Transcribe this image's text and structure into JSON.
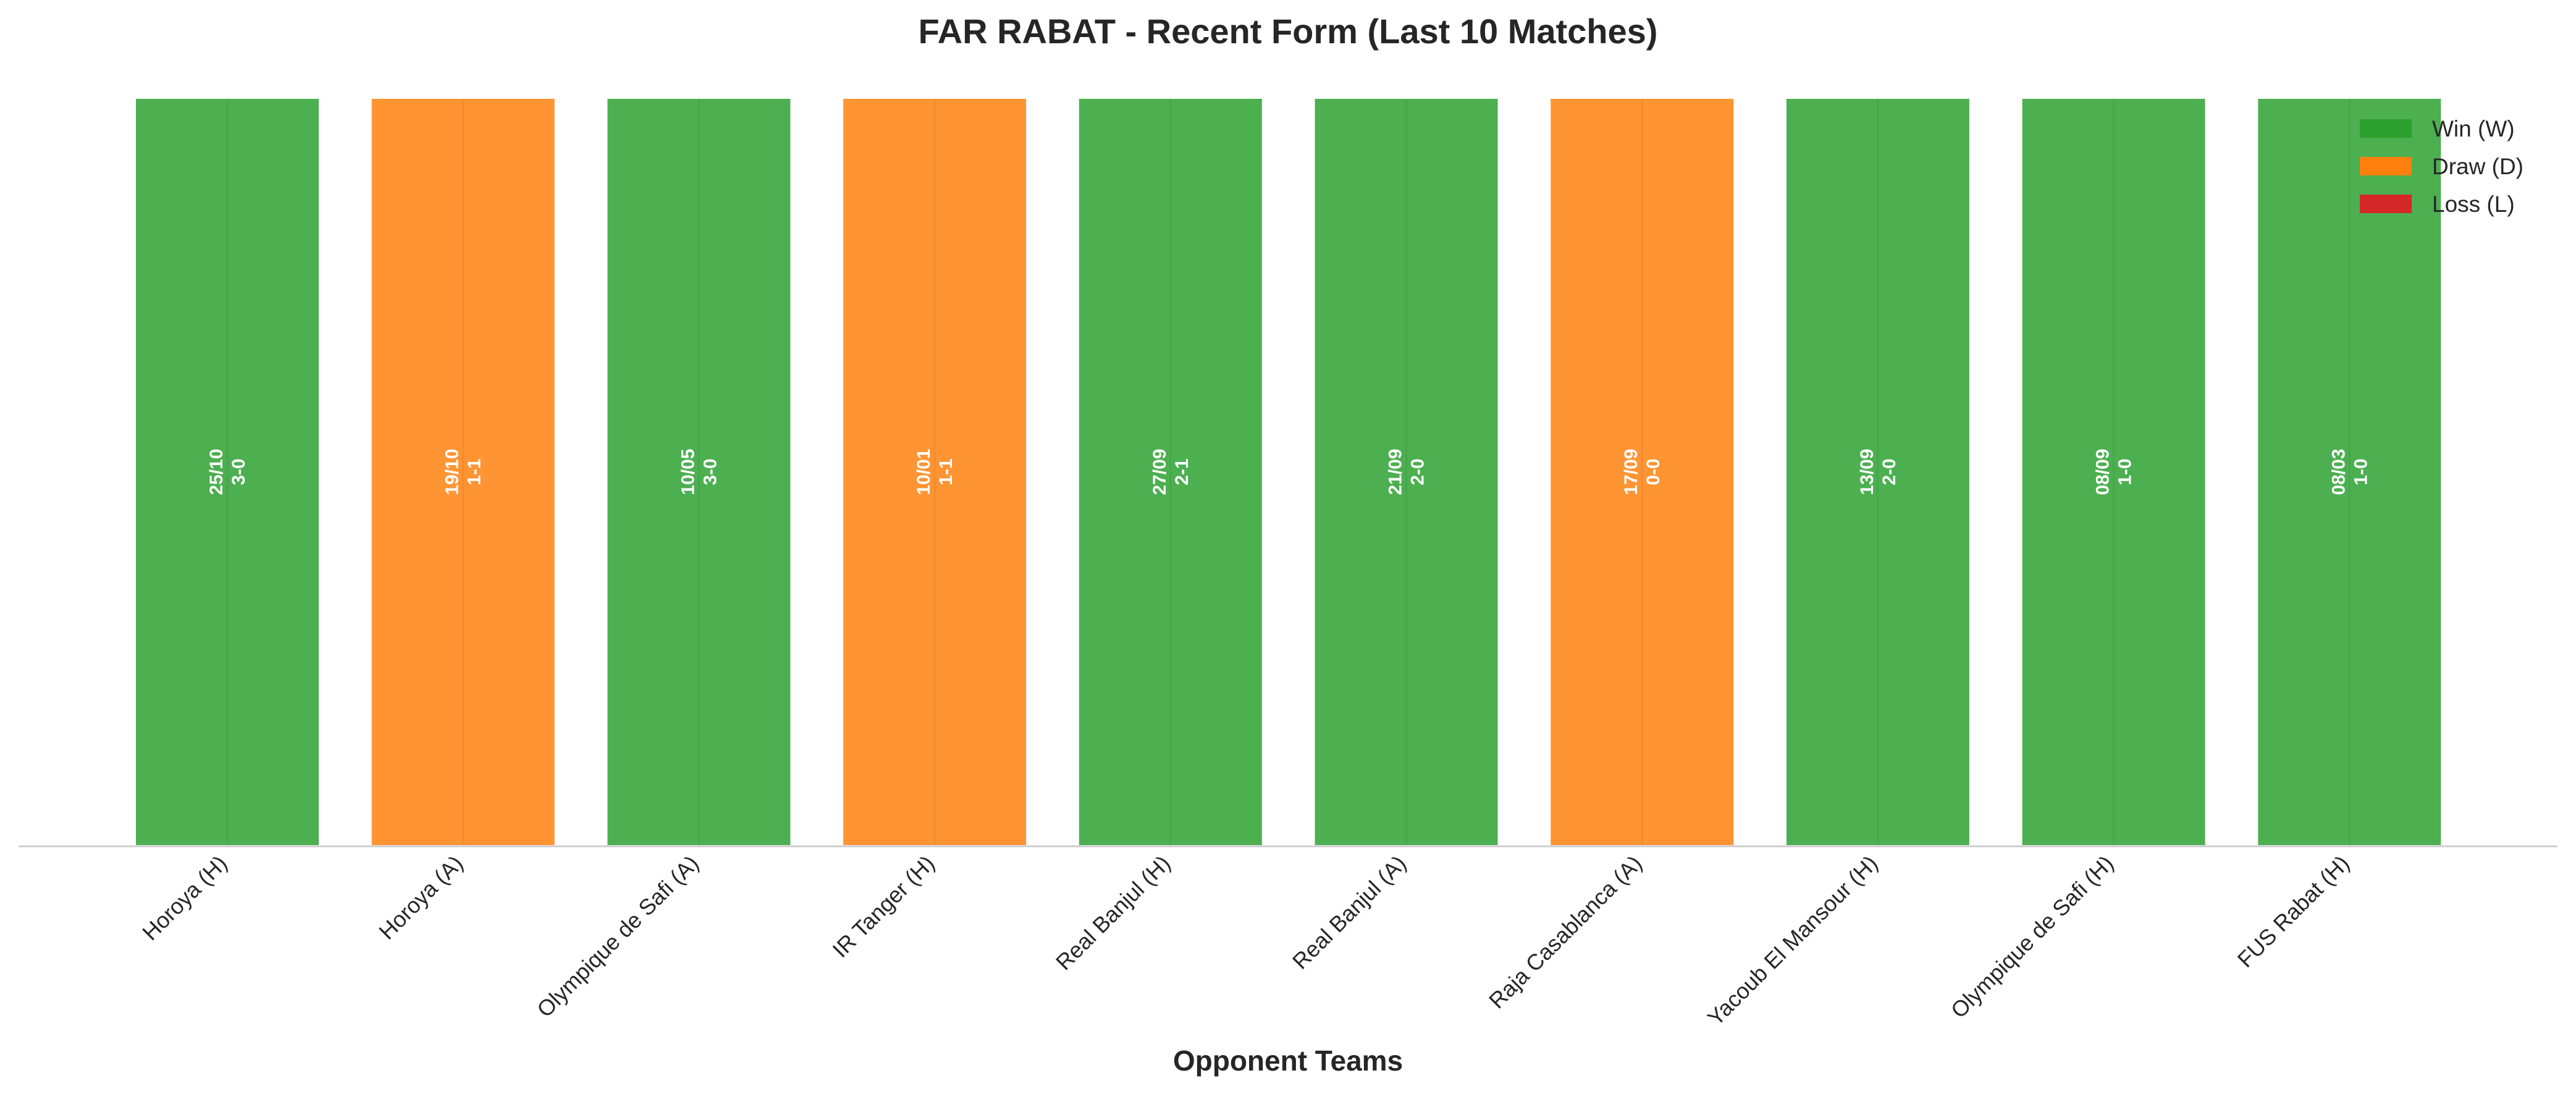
{
  "chart_data": {
    "type": "bar",
    "title": "FAR RABAT - Recent Form (Last 10 Matches)",
    "xlabel": "Opponent Teams",
    "ylabel": "",
    "grid": false,
    "legend_position": "top-right",
    "categories": [
      "Horoya (H)",
      "Horoya (A)",
      "Olympique de Safi (A)",
      "IR Tanger (H)",
      "Real Banjul (H)",
      "Real Banjul (A)",
      "Raja Casablanca (A)",
      "Yacoub El Mansour (H)",
      "Olympique de Safi (H)",
      "FUS Rabat (H)"
    ],
    "values": [
      1,
      1,
      1,
      1,
      1,
      1,
      1,
      1,
      1,
      1
    ],
    "ylim": [
      0,
      1
    ],
    "results": [
      "W",
      "D",
      "W",
      "D",
      "W",
      "W",
      "D",
      "W",
      "W",
      "W"
    ],
    "dates": [
      "25/10",
      "19/10",
      "10/05",
      "10/01",
      "27/09",
      "21/09",
      "17/09",
      "13/09",
      "08/09",
      "08/03"
    ],
    "scores": [
      "3-0",
      "1-1",
      "3-0",
      "1-1",
      "2-1",
      "2-0",
      "0-0",
      "2-0",
      "1-0",
      "1-0"
    ],
    "legend": [
      {
        "key": "W",
        "label": "Win (W)",
        "color": "#2ca02c"
      },
      {
        "key": "D",
        "label": "Draw (D)",
        "color": "#ff7f0e"
      },
      {
        "key": "L",
        "label": "Loss (L)",
        "color": "#d62728"
      }
    ],
    "colors": {
      "W": "#4caf50",
      "D": "#ff9433",
      "L": "#d62728"
    }
  }
}
